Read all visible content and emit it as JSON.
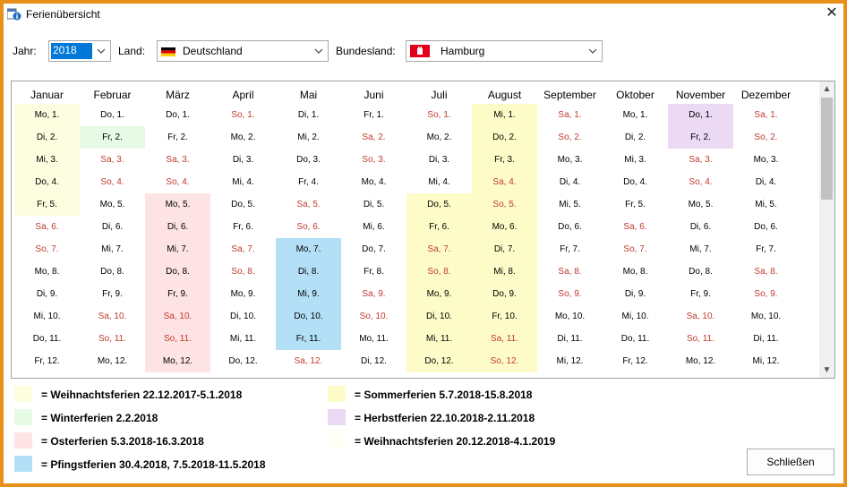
{
  "window": {
    "title": "Ferienübersicht"
  },
  "filters": {
    "year_label": "Jahr:",
    "year_value": "2018",
    "country_label": "Land:",
    "country_value": "Deutschland",
    "state_label": "Bundesland:",
    "state_value": "Hamburg"
  },
  "months": [
    "Januar",
    "Februar",
    "März",
    "April",
    "Mai",
    "Juni",
    "Juli",
    "August",
    "September",
    "Oktober",
    "November",
    "Dezember"
  ],
  "days": [
    [
      "Mo, 1.",
      "Do, 1.",
      "Do, 1.",
      "So, 1.",
      "Di, 1.",
      "Fr, 1.",
      "So, 1.",
      "Mi, 1.",
      "Sa, 1.",
      "Mo, 1.",
      "Do, 1.",
      "Sa, 1."
    ],
    [
      "Di, 2.",
      "Fr, 2.",
      "Fr, 2.",
      "Mo, 2.",
      "Mi, 2.",
      "Sa, 2.",
      "Mo, 2.",
      "Do, 2.",
      "So, 2.",
      "Di, 2.",
      "Fr, 2.",
      "So, 2."
    ],
    [
      "Mi, 3.",
      "Sa, 3.",
      "Sa, 3.",
      "Di, 3.",
      "Do, 3.",
      "So, 3.",
      "Di, 3.",
      "Fr, 3.",
      "Mo, 3.",
      "Mi, 3.",
      "Sa, 3.",
      "Mo, 3."
    ],
    [
      "Do, 4.",
      "So, 4.",
      "So, 4.",
      "Mi, 4.",
      "Fr, 4.",
      "Mo, 4.",
      "Mi, 4.",
      "Sa, 4.",
      "Di, 4.",
      "Do, 4.",
      "So, 4.",
      "Di, 4."
    ],
    [
      "Fr, 5.",
      "Mo, 5.",
      "Mo, 5.",
      "Do, 5.",
      "Sa, 5.",
      "Di, 5.",
      "Do, 5.",
      "So, 5.",
      "Mi, 5.",
      "Fr, 5.",
      "Mo, 5.",
      "Mi, 5."
    ],
    [
      "Sa, 6.",
      "Di, 6.",
      "Di, 6.",
      "Fr, 6.",
      "So, 6.",
      "Mi, 6.",
      "Fr, 6.",
      "Mo, 6.",
      "Do, 6.",
      "Sa, 6.",
      "Di, 6.",
      "Do, 6."
    ],
    [
      "So, 7.",
      "Mi, 7.",
      "Mi, 7.",
      "Sa, 7.",
      "Mo, 7.",
      "Do, 7.",
      "Sa, 7.",
      "Di, 7.",
      "Fr, 7.",
      "So, 7.",
      "Mi, 7.",
      "Fr, 7."
    ],
    [
      "Mo, 8.",
      "Do, 8.",
      "Do, 8.",
      "So, 8.",
      "Di, 8.",
      "Fr, 8.",
      "So, 8.",
      "Mi, 8.",
      "Sa, 8.",
      "Mo, 8.",
      "Do, 8.",
      "Sa, 8."
    ],
    [
      "Di, 9.",
      "Fr, 9.",
      "Fr, 9.",
      "Mo, 9.",
      "Mi, 9.",
      "Sa, 9.",
      "Mo, 9.",
      "Do, 9.",
      "So, 9.",
      "Di, 9.",
      "Fr, 9.",
      "So, 9."
    ],
    [
      "Mi, 10.",
      "Sa, 10.",
      "Sa, 10.",
      "Di, 10.",
      "Do, 10.",
      "So, 10.",
      "Di, 10.",
      "Fr, 10.",
      "Mo, 10.",
      "Mi, 10.",
      "Sa, 10.",
      "Mo, 10."
    ],
    [
      "Do, 11.",
      "So, 11.",
      "So, 11.",
      "Mi, 11.",
      "Fr, 11.",
      "Mo, 11.",
      "Mi, 11.",
      "Sa, 11.",
      "Di, 11.",
      "Do, 11.",
      "So, 11.",
      "Di, 11."
    ],
    [
      "Fr, 12.",
      "Mo, 12.",
      "Mo, 12.",
      "Do, 12.",
      "Sa, 12.",
      "Di, 12.",
      "Do, 12.",
      "So, 12.",
      "Mi, 12.",
      "Fr, 12.",
      "Mo, 12.",
      "Mi, 12."
    ]
  ],
  "highlights": [
    {
      "month": 0,
      "from": 1,
      "to": 5,
      "color": "#fdfde0"
    },
    {
      "month": 1,
      "from": 2,
      "to": 2,
      "color": "#e6fae6"
    },
    {
      "month": 2,
      "from": 5,
      "to": 12,
      "color": "#fde3e3"
    },
    {
      "month": 4,
      "from": 7,
      "to": 11,
      "color": "#b3e0f7"
    },
    {
      "month": 6,
      "from": 5,
      "to": 12,
      "color": "#fdfcc8"
    },
    {
      "month": 7,
      "from": 1,
      "to": 12,
      "color": "#fdfcc8"
    },
    {
      "month": 10,
      "from": 1,
      "to": 2,
      "color": "#ecd9f3"
    }
  ],
  "colors": {
    "weekend_text": "#c0392b",
    "selection": "#0078d7"
  },
  "legend": [
    {
      "text": "= Weihnachtsferien 22.12.2017-5.1.2018",
      "color": "#fdfde0"
    },
    {
      "text": "= Winterferien 2.2.2018",
      "color": "#e6fae6"
    },
    {
      "text": "= Osterferien 5.3.2018-16.3.2018",
      "color": "#fde3e3"
    },
    {
      "text": "= Pfingstferien 30.4.2018, 7.5.2018-11.5.2018",
      "color": "#b3e0f7"
    },
    {
      "text": "= Sommerferien 5.7.2018-15.8.2018",
      "color": "#fdfcc8"
    },
    {
      "text": "= Herbstferien 22.10.2018-2.11.2018",
      "color": "#ecd9f3"
    },
    {
      "text": "= Weihnachtsferien 20.12.2018-4.1.2019",
      "color": "#fffef5"
    }
  ],
  "buttons": {
    "close_label": "Schließen"
  },
  "icons": {
    "app": "calendar-info-icon",
    "close": "close-icon",
    "dropdown": "chevron-down-icon",
    "scroll_up": "scroll-up-icon",
    "scroll_down": "scroll-down-icon"
  }
}
